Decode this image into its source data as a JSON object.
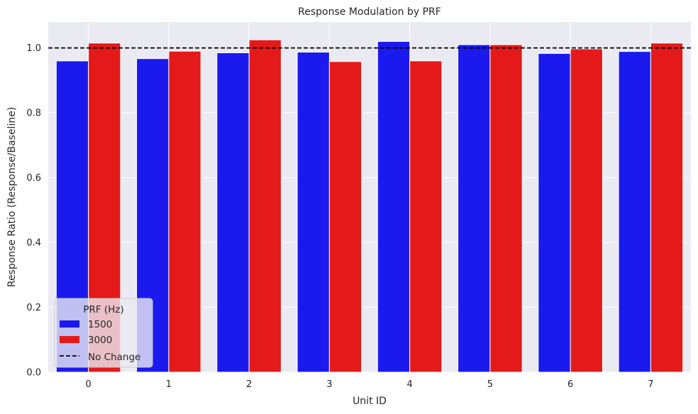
{
  "chart_data": {
    "type": "bar",
    "title": "Response Modulation by PRF",
    "xlabel": "Unit ID",
    "ylabel": "Response Ratio (Response/Baseline)",
    "categories": [
      "0",
      "1",
      "2",
      "3",
      "4",
      "5",
      "6",
      "7"
    ],
    "series": [
      {
        "name": "1500",
        "color": "#1a1aee",
        "values": [
          0.96,
          0.967,
          0.985,
          0.987,
          1.02,
          1.01,
          0.983,
          0.989
        ]
      },
      {
        "name": "3000",
        "color": "#e41a1a",
        "values": [
          1.015,
          0.99,
          1.025,
          0.958,
          0.96,
          1.01,
          0.997,
          1.015
        ]
      }
    ],
    "reference_line": {
      "y": 1.0,
      "style": "dashed",
      "color": "#000000",
      "label": "No Change"
    },
    "ylim": [
      0,
      1.08
    ],
    "yticks": [
      "0.0",
      "0.2",
      "0.4",
      "0.6",
      "0.8",
      "1.0"
    ],
    "legend": {
      "title": "PRF (Hz)",
      "placement": "lower-left"
    },
    "grid": true,
    "background": "#eaeaf2"
  }
}
